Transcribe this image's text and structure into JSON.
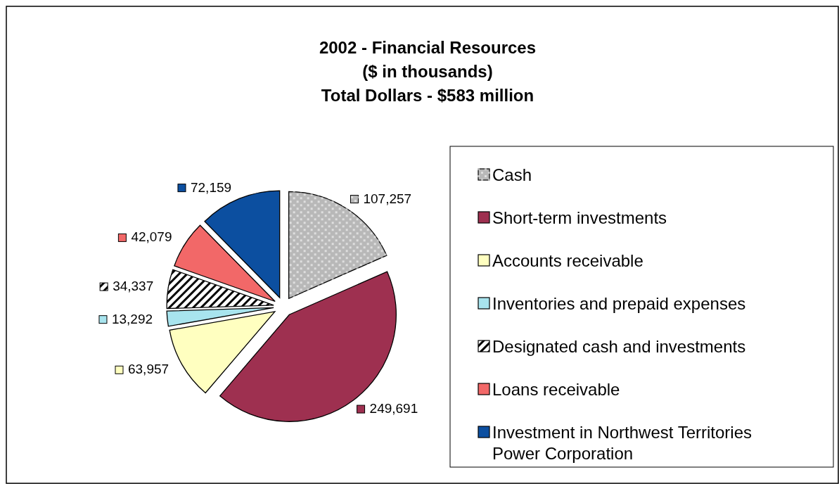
{
  "chart_data": {
    "type": "pie",
    "title": "2002 - Financial Resources\n($ in thousands)\nTotal Dollars - $583 million",
    "categories": [
      "Cash",
      "Short-term investments",
      "Accounts receivable",
      "Inventories and prepaid expenses",
      "Designated cash and investments",
      "Loans receivable",
      "Investment in Northwest Territories Power Corporation"
    ],
    "values": [
      107257,
      249691,
      63957,
      13292,
      34337,
      42079,
      72159
    ],
    "colors": [
      "#b8b8b8",
      "#9e3050",
      "#ffffc0",
      "#a8e4ee",
      "#000000",
      "#f26868",
      "#0c4fa0"
    ],
    "value_labels": [
      "107,257",
      "249,691",
      "63,957",
      "13,292",
      "34,337",
      "42,079",
      "72,159"
    ],
    "legend": "right"
  }
}
